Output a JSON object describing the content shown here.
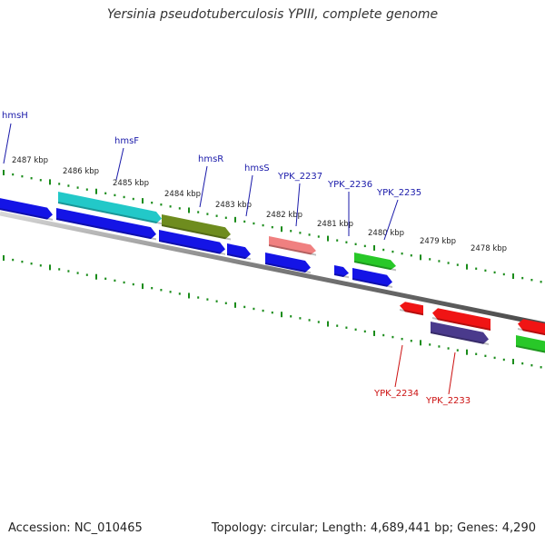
{
  "title": "Yersinia pseudotuberculosis YPIII, complete genome",
  "footer": {
    "accession": "Accession: NC_010465",
    "topology": "Topology: circular; Length: 4,689,441 bp; Genes: 4,290"
  },
  "ticks": [
    "2487 kbp",
    "2486 kbp",
    "2485 kbp",
    "2484 kbp",
    "2483 kbp",
    "2482 kbp",
    "2481 kbp",
    "2480 kbp",
    "2479 kbp",
    "2478 kbp"
  ],
  "labels": {
    "forward": [
      "hmsH",
      "hmsF",
      "hmsR",
      "hmsS",
      "YPK_2237",
      "YPK_2236",
      "YPK_2235"
    ],
    "reverse": [
      "YPK_2234",
      "YPK_2233"
    ]
  },
  "colors": {
    "cds_blue": "#1414e6",
    "cyan": "#22c8c8",
    "olive": "#6e8c1e",
    "pink": "#f08080",
    "green": "#28c828",
    "red": "#f01414",
    "purple": "#4a3a8c",
    "label_blue": "#1a1aaa",
    "label_red": "#cc1111",
    "tick_green": "#1a8c1a",
    "backbone": "#808080"
  }
}
